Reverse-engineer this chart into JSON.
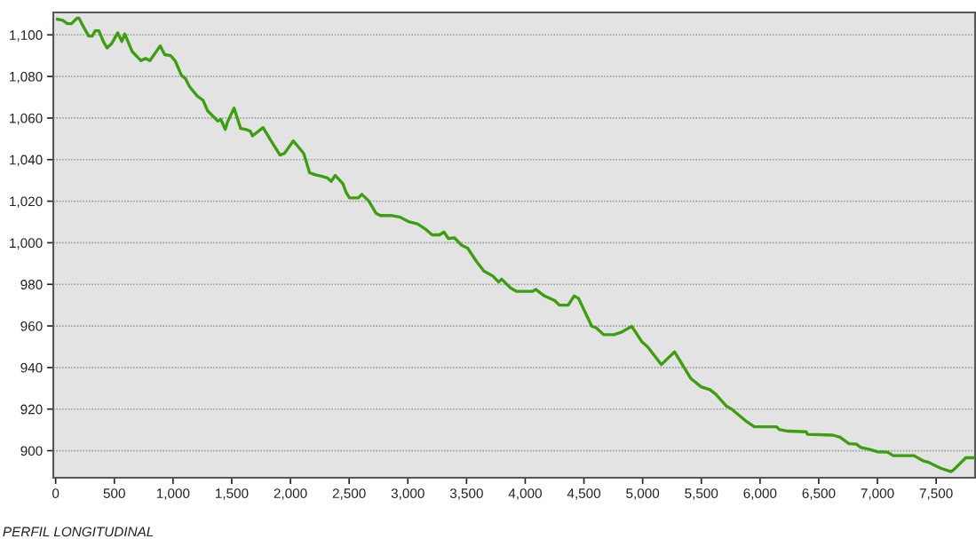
{
  "chart_data": {
    "type": "line",
    "xlabel": "PERFIL LONGITUDINAL",
    "xlim": [
      -20,
      7832
    ],
    "ylim": [
      887,
      1110.8
    ],
    "xticks": [
      0,
      {
        "value": 500,
        "label": "500"
      },
      {
        "value": 1000,
        "label": "1,000"
      },
      {
        "value": 1500,
        "label": "1,500"
      },
      {
        "value": 2000,
        "label": "2,000"
      },
      {
        "value": 2500,
        "label": "2,500"
      },
      {
        "value": 3000,
        "label": "3,000"
      },
      {
        "value": 3500,
        "label": "3,500"
      },
      {
        "value": 4000,
        "label": "4,000"
      },
      {
        "value": 4500,
        "label": "4,500"
      },
      {
        "value": 5000,
        "label": "5,000"
      },
      {
        "value": 5500,
        "label": "5,500"
      },
      {
        "value": 6000,
        "label": "6,000"
      },
      {
        "value": 6500,
        "label": "6,500"
      },
      {
        "value": 7000,
        "label": "7,000"
      },
      {
        "value": 7500,
        "label": "7,500"
      }
    ],
    "yticks": [
      900,
      920,
      940,
      960,
      980,
      {
        "value": 1000,
        "label": "1,000"
      },
      {
        "value": 1020,
        "label": "1,020"
      },
      {
        "value": 1040,
        "label": "1,040"
      },
      {
        "value": 1060,
        "label": "1,060"
      },
      {
        "value": 1080,
        "label": "1,080"
      },
      {
        "value": 1100,
        "label": "1,100"
      }
    ],
    "grid": "y",
    "marker": "none",
    "line_style": "solid",
    "legend": false,
    "series": [
      {
        "color": "#3c9e10",
        "x": [
          15,
          60,
          100,
          136,
          181,
          199,
          236,
          282,
          312,
          337,
          368,
          408,
          438,
          476,
          529,
          564,
          589,
          652,
          727,
          765,
          803,
          891,
          929,
          979,
          1017,
          1072,
          1105,
          1143,
          1206,
          1256,
          1294,
          1382,
          1407,
          1445,
          1465,
          1520,
          1576,
          1622,
          1659,
          1677,
          1767,
          1835,
          1911,
          1949,
          2024,
          2113,
          2163,
          2213,
          2263,
          2314,
          2347,
          2382,
          2447,
          2473,
          2503,
          2578,
          2608,
          2666,
          2729,
          2767,
          2855,
          2931,
          3006,
          3082,
          3157,
          3207,
          3270,
          3308,
          3346,
          3396,
          3459,
          3510,
          3585,
          3648,
          3724,
          3774,
          3799,
          3875,
          3925,
          4063,
          4089,
          4164,
          4252,
          4290,
          4366,
          4416,
          4454,
          4567,
          4605,
          4668,
          4756,
          4819,
          4907,
          4995,
          5045,
          5159,
          5272,
          5411,
          5498,
          5574,
          5624,
          5712,
          5763,
          5876,
          5952,
          6140,
          6166,
          6241,
          6392,
          6405,
          6619,
          6682,
          6757,
          6820,
          6858,
          6934,
          6997,
          7085,
          7135,
          7311,
          7387,
          7437,
          7538,
          7626,
          7651,
          7752,
          7832
        ],
        "values": [
          1107.5,
          1107,
          1105.4,
          1105.4,
          1108,
          1108,
          1104,
          1099.4,
          1099.4,
          1102,
          1102,
          1096.6,
          1093.7,
          1095.7,
          1101,
          1096.8,
          1100.4,
          1092,
          1087.6,
          1088.7,
          1087.6,
          1094.7,
          1090.5,
          1090,
          1087.6,
          1080.5,
          1079,
          1074.9,
          1070.6,
          1068.5,
          1063.5,
          1058.5,
          1059.3,
          1054.5,
          1058.2,
          1064.8,
          1055,
          1054.5,
          1053.6,
          1051.4,
          1055.4,
          1049,
          1042.2,
          1043,
          1049,
          1043,
          1033.7,
          1032.7,
          1032,
          1031.2,
          1029.5,
          1032.4,
          1028.4,
          1024.4,
          1021.6,
          1021.6,
          1023.3,
          1020.2,
          1014.2,
          1013.1,
          1013.1,
          1012.4,
          1010.2,
          1009.1,
          1006.3,
          1003.8,
          1003.8,
          1005.2,
          1002,
          1002.4,
          998.8,
          997.4,
          991,
          986.4,
          984,
          981.1,
          982.5,
          978.3,
          976.6,
          976.6,
          977.6,
          974.4,
          972.2,
          970,
          970,
          974.4,
          973.3,
          959.8,
          959.1,
          955.8,
          955.8,
          957,
          959.8,
          952.3,
          949.8,
          941.4,
          947.5,
          934.7,
          930.7,
          929.3,
          927.1,
          921.5,
          919.8,
          914.4,
          911.5,
          911.5,
          910.1,
          909.4,
          909.1,
          907.9,
          907.5,
          906.5,
          903.4,
          903.2,
          901.6,
          900.6,
          899.5,
          899.3,
          897.6,
          897.6,
          895.2,
          894.4,
          891.6,
          889.9,
          890.9,
          896.6,
          896.6
        ]
      }
    ]
  }
}
